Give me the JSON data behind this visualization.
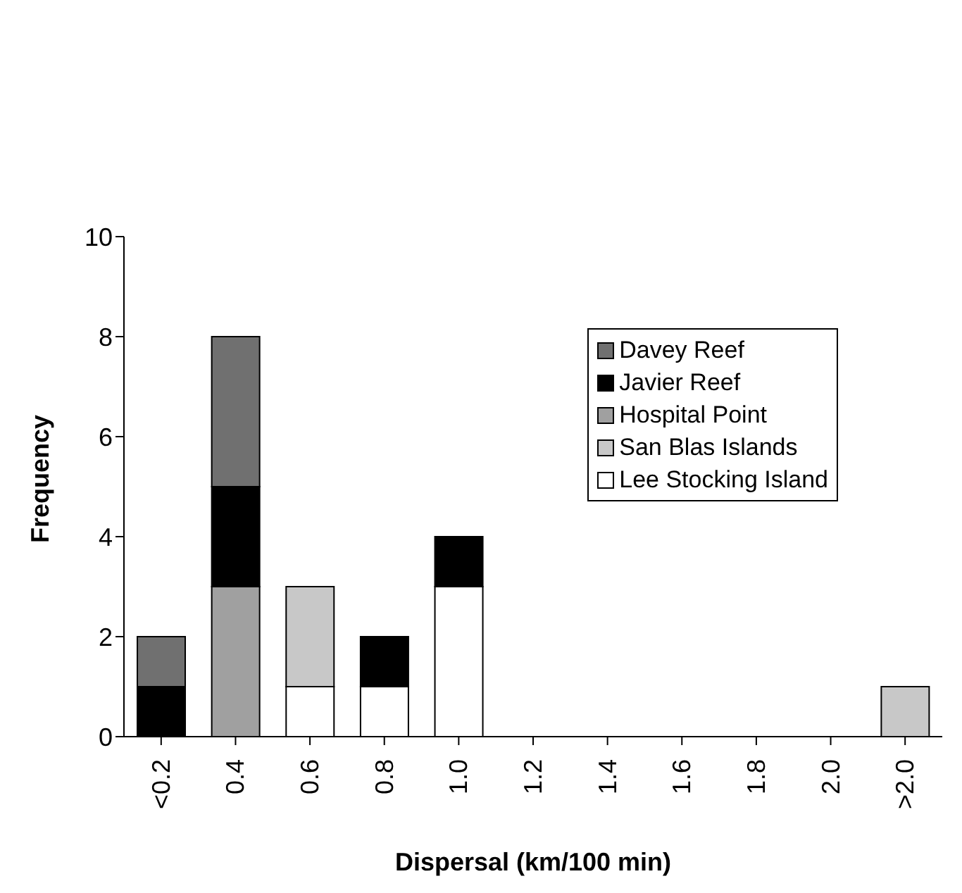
{
  "chart_data": {
    "type": "bar",
    "stacked": true,
    "xlabel": "Dispersal (km/100 min)",
    "ylabel": "Frequency",
    "categories": [
      "<0.2",
      "0.4",
      "0.6",
      "0.8",
      "1.0",
      "1.2",
      "1.4",
      "1.6",
      "1.8",
      "2.0",
      ">2.0"
    ],
    "series": [
      {
        "name": "Lee Stocking Island",
        "color": "#ffffff",
        "values": [
          null,
          null,
          1,
          1,
          3,
          null,
          null,
          null,
          null,
          null,
          null
        ]
      },
      {
        "name": "San Blas Islands",
        "color": "#c8c8c8",
        "values": [
          null,
          null,
          2,
          null,
          null,
          null,
          null,
          null,
          null,
          null,
          1
        ]
      },
      {
        "name": "Hospital Point",
        "color": "#a0a0a0",
        "values": [
          null,
          3,
          null,
          null,
          null,
          null,
          null,
          null,
          null,
          null,
          null
        ]
      },
      {
        "name": "Javier Reef",
        "color": "#000000",
        "values": [
          1,
          2,
          null,
          1,
          1,
          null,
          null,
          null,
          null,
          null,
          null
        ]
      },
      {
        "name": "Davey Reef",
        "color": "#707070",
        "values": [
          1,
          3,
          null,
          null,
          null,
          null,
          null,
          null,
          null,
          null,
          null
        ]
      }
    ],
    "ylim": [
      0,
      10
    ],
    "yticks": [
      0,
      2,
      4,
      6,
      8,
      10
    ],
    "grid": false,
    "legend": "top right"
  }
}
